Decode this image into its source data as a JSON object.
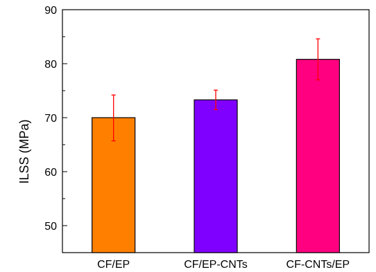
{
  "chart_data": {
    "type": "bar",
    "title": "",
    "xlabel": "",
    "ylabel": "ILSS (MPa)",
    "categories": [
      "CF/EP",
      "CF/EP-CNTs",
      "CF-CNTs/EP"
    ],
    "values": [
      70.0,
      73.3,
      80.8
    ],
    "error_lower": [
      4.3,
      1.8,
      3.8
    ],
    "error_upper": [
      4.2,
      1.8,
      3.8
    ],
    "bar_colors": [
      "#ff8000",
      "#8000ff",
      "#ff0080"
    ],
    "error_bar_color": "#ff0000",
    "ylim": [
      45,
      90
    ],
    "yticks": [
      50,
      60,
      70,
      80,
      90
    ],
    "yticks_labels": [
      "50",
      "60",
      "70",
      "80",
      "90"
    ],
    "y_minor_step": 5,
    "grid": false,
    "legend": "none"
  }
}
